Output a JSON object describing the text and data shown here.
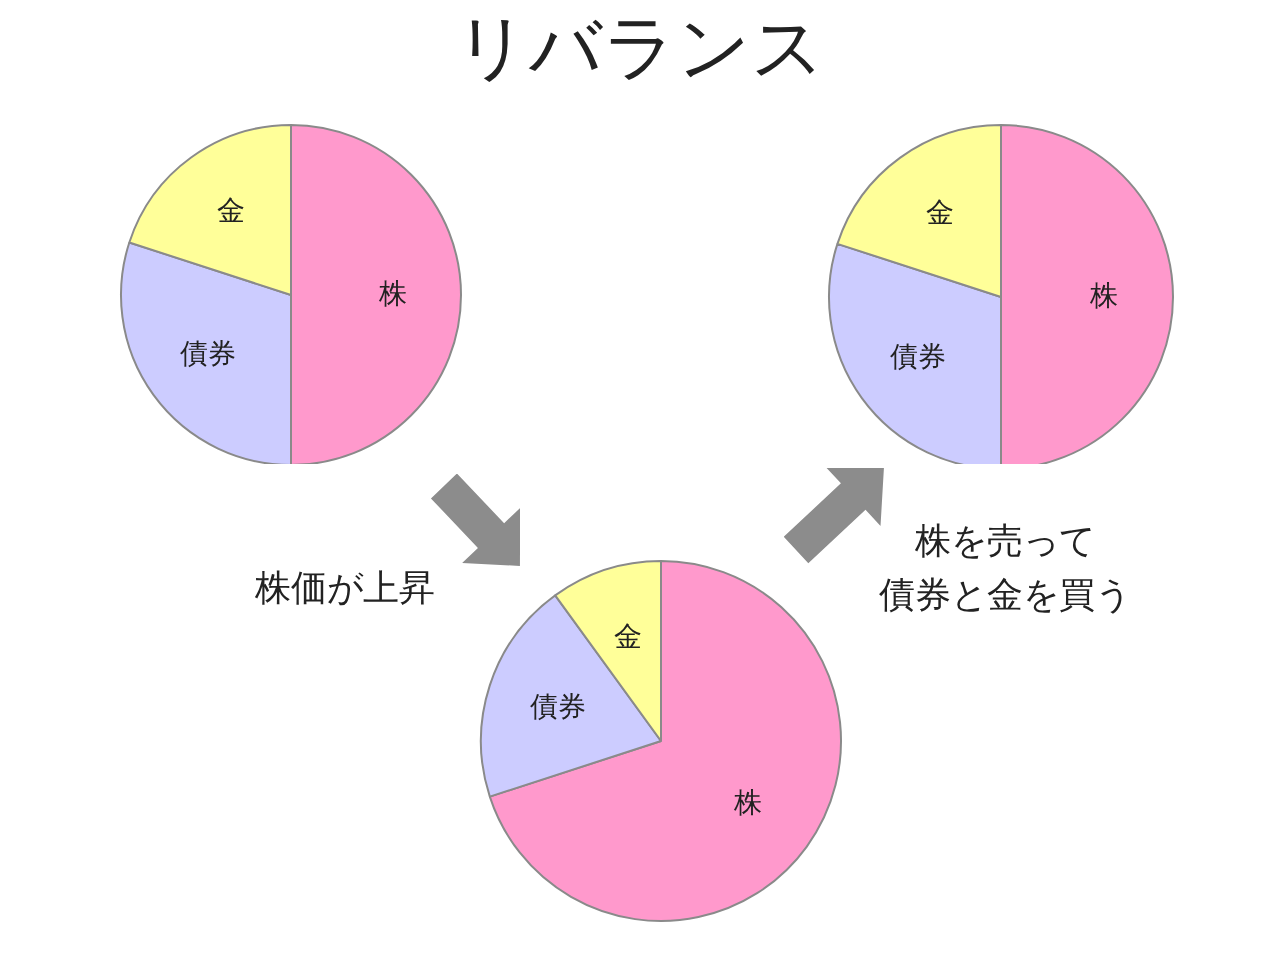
{
  "chart_data": [
    {
      "type": "pie",
      "title": "リバランス",
      "categories": [
        "株",
        "債券",
        "金"
      ],
      "values": [
        50,
        30,
        20
      ],
      "colors": [
        "#ff99cc",
        "#ccccff",
        "#ffff99"
      ]
    },
    {
      "type": "pie",
      "categories": [
        "株",
        "債券",
        "金"
      ],
      "values": [
        50,
        30,
        20
      ],
      "colors": [
        "#ff99cc",
        "#ccccff",
        "#ffff99"
      ]
    },
    {
      "type": "pie",
      "categories": [
        "株",
        "債券",
        "金"
      ],
      "values": [
        70,
        20,
        10
      ],
      "colors": [
        "#ff99cc",
        "#ccccff",
        "#ffff99"
      ],
      "annotations": [
        "株価が上昇",
        "株を売って債券と金を買う"
      ]
    }
  ]
}
